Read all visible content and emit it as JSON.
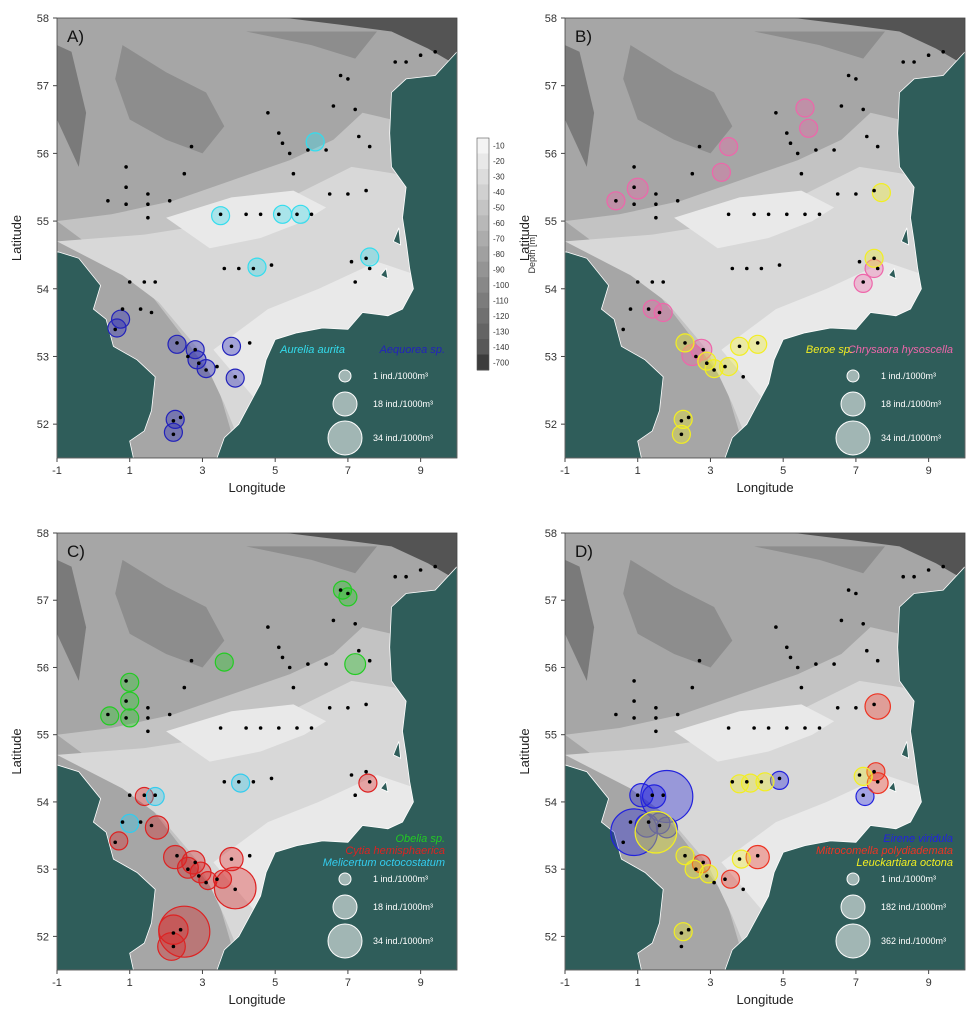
{
  "axes": {
    "xlabel": "Longitude",
    "ylabel": "Latitude",
    "xticks": [
      "-1",
      "1",
      "3",
      "5",
      "7",
      "9"
    ],
    "xtick_values": [
      -1,
      1,
      3,
      5,
      7,
      9
    ],
    "yticks": [
      "52",
      "53",
      "54",
      "55",
      "56",
      "57",
      "58"
    ],
    "ytick_values": [
      52,
      53,
      54,
      55,
      56,
      57,
      58
    ],
    "xlim": [
      -1,
      10
    ],
    "ylim": [
      51.5,
      58
    ]
  },
  "colorbar": {
    "title": "Depth [m]",
    "labels": [
      "-10",
      "-20",
      "-30",
      "-40",
      "-50",
      "-60",
      "-70",
      "-80",
      "-90",
      "-100",
      "-110",
      "-120",
      "-130",
      "-140",
      "-700"
    ],
    "colors": [
      "#f4f4f4",
      "#e8e8e8",
      "#dcdcdc",
      "#d0d0d0",
      "#c4c4c4",
      "#b8b8b8",
      "#acacac",
      "#a0a0a0",
      "#949494",
      "#888888",
      "#7c7c7c",
      "#707070",
      "#646464",
      "#585858",
      "#3c3c3c"
    ]
  },
  "colors": {
    "land": "#2f5d5a",
    "station": "#000000"
  },
  "stations": [
    [
      0.4,
      55.3
    ],
    [
      0.9,
      55.8
    ],
    [
      0.9,
      55.5
    ],
    [
      0.9,
      55.25
    ],
    [
      1.5,
      55.4
    ],
    [
      1.5,
      55.25
    ],
    [
      1.5,
      55.05
    ],
    [
      2.1,
      55.3
    ],
    [
      2.5,
      55.7
    ],
    [
      2.7,
      56.1
    ],
    [
      4.8,
      56.6
    ],
    [
      5.1,
      56.3
    ],
    [
      5.2,
      56.15
    ],
    [
      5.4,
      56.0
    ],
    [
      5.5,
      55.7
    ],
    [
      5.9,
      56.05
    ],
    [
      6.4,
      56.05
    ],
    [
      6.6,
      56.7
    ],
    [
      6.8,
      57.15
    ],
    [
      7.0,
      57.1
    ],
    [
      7.2,
      56.65
    ],
    [
      7.3,
      56.25
    ],
    [
      7.6,
      56.1
    ],
    [
      8.3,
      57.35
    ],
    [
      8.6,
      57.35
    ],
    [
      9.0,
      57.45
    ],
    [
      9.4,
      57.5
    ],
    [
      3.5,
      55.1
    ],
    [
      4.2,
      55.1
    ],
    [
      4.6,
      55.1
    ],
    [
      5.1,
      55.1
    ],
    [
      5.6,
      55.1
    ],
    [
      6.0,
      55.1
    ],
    [
      6.5,
      55.4
    ],
    [
      7.0,
      55.4
    ],
    [
      7.5,
      55.45
    ],
    [
      7.1,
      54.4
    ],
    [
      7.5,
      54.45
    ],
    [
      7.2,
      54.1
    ],
    [
      7.6,
      54.3
    ],
    [
      3.6,
      54.3
    ],
    [
      4.0,
      54.3
    ],
    [
      4.4,
      54.3
    ],
    [
      4.9,
      54.35
    ],
    [
      1.0,
      54.1
    ],
    [
      1.4,
      54.1
    ],
    [
      1.7,
      54.1
    ],
    [
      0.8,
      53.7
    ],
    [
      1.3,
      53.7
    ],
    [
      1.6,
      53.65
    ],
    [
      0.6,
      53.4
    ],
    [
      2.3,
      53.2
    ],
    [
      2.6,
      53.0
    ],
    [
      2.8,
      53.1
    ],
    [
      2.9,
      52.9
    ],
    [
      3.1,
      52.8
    ],
    [
      3.4,
      52.85
    ],
    [
      3.8,
      53.15
    ],
    [
      4.3,
      53.2
    ],
    [
      3.9,
      52.7
    ],
    [
      2.2,
      52.05
    ],
    [
      2.2,
      51.85
    ],
    [
      2.4,
      52.1
    ]
  ],
  "panels": [
    {
      "label": "A)",
      "legend": {
        "species": [
          {
            "name": "Aurelia aurita",
            "color": "#33ddee"
          },
          {
            "name": "Aequorea sp.",
            "color": "#2222bb"
          }
        ],
        "sizes": [
          "1 ind./1000m³",
          "18 ind./1000m³",
          "34 ind./1000m³"
        ]
      },
      "points": [
        {
          "lon": 0.75,
          "lat": 53.55,
          "sp": 1,
          "v": 3
        },
        {
          "lon": 0.65,
          "lat": 53.42,
          "sp": 1,
          "v": 3
        },
        {
          "lon": 2.3,
          "lat": 53.18,
          "sp": 1,
          "v": 3
        },
        {
          "lon": 2.8,
          "lat": 53.1,
          "sp": 1,
          "v": 3
        },
        {
          "lon": 2.85,
          "lat": 52.95,
          "sp": 1,
          "v": 3
        },
        {
          "lon": 3.1,
          "lat": 52.82,
          "sp": 1,
          "v": 3
        },
        {
          "lon": 3.8,
          "lat": 53.15,
          "sp": 1,
          "v": 3
        },
        {
          "lon": 3.9,
          "lat": 52.68,
          "sp": 1,
          "v": 3
        },
        {
          "lon": 2.25,
          "lat": 52.07,
          "sp": 1,
          "v": 3
        },
        {
          "lon": 2.2,
          "lat": 51.88,
          "sp": 1,
          "v": 3
        },
        {
          "lon": 3.5,
          "lat": 55.08,
          "sp": 0,
          "v": 3
        },
        {
          "lon": 4.5,
          "lat": 54.32,
          "sp": 0,
          "v": 3
        },
        {
          "lon": 5.2,
          "lat": 55.1,
          "sp": 0,
          "v": 3
        },
        {
          "lon": 5.7,
          "lat": 55.1,
          "sp": 0,
          "v": 3
        },
        {
          "lon": 6.1,
          "lat": 56.17,
          "sp": 0,
          "v": 3
        },
        {
          "lon": 7.6,
          "lat": 54.47,
          "sp": 0,
          "v": 3
        }
      ]
    },
    {
      "label": "B)",
      "legend": {
        "species": [
          {
            "name": "Beroe sp.",
            "color": "#f2ee22"
          },
          {
            "name": "Chrysaora hysoscella",
            "color": "#ee66aa"
          }
        ],
        "sizes": [
          "1 ind./1000m³",
          "18 ind./1000m³",
          "34 ind./1000m³"
        ]
      },
      "points": [
        {
          "lon": 0.4,
          "lat": 55.3,
          "sp": 1,
          "v": 3
        },
        {
          "lon": 1.0,
          "lat": 55.48,
          "sp": 1,
          "v": 4
        },
        {
          "lon": 3.5,
          "lat": 56.1,
          "sp": 1,
          "v": 3
        },
        {
          "lon": 3.3,
          "lat": 55.72,
          "sp": 1,
          "v": 3
        },
        {
          "lon": 5.6,
          "lat": 56.67,
          "sp": 1,
          "v": 3
        },
        {
          "lon": 5.7,
          "lat": 56.37,
          "sp": 1,
          "v": 3
        },
        {
          "lon": 7.5,
          "lat": 54.3,
          "sp": 1,
          "v": 3
        },
        {
          "lon": 7.2,
          "lat": 54.08,
          "sp": 1,
          "v": 3
        },
        {
          "lon": 1.4,
          "lat": 53.7,
          "sp": 1,
          "v": 3
        },
        {
          "lon": 1.7,
          "lat": 53.65,
          "sp": 1,
          "v": 3
        },
        {
          "lon": 2.5,
          "lat": 53.02,
          "sp": 1,
          "v": 4
        },
        {
          "lon": 2.75,
          "lat": 53.1,
          "sp": 1,
          "v": 4
        },
        {
          "lon": 7.7,
          "lat": 55.42,
          "sp": 0,
          "v": 3
        },
        {
          "lon": 7.5,
          "lat": 54.45,
          "sp": 0,
          "v": 3
        },
        {
          "lon": 2.3,
          "lat": 53.2,
          "sp": 0,
          "v": 3
        },
        {
          "lon": 2.9,
          "lat": 52.93,
          "sp": 0,
          "v": 3
        },
        {
          "lon": 3.1,
          "lat": 52.82,
          "sp": 0,
          "v": 3
        },
        {
          "lon": 3.5,
          "lat": 52.85,
          "sp": 0,
          "v": 3
        },
        {
          "lon": 3.8,
          "lat": 53.15,
          "sp": 0,
          "v": 3
        },
        {
          "lon": 4.3,
          "lat": 53.18,
          "sp": 0,
          "v": 3
        },
        {
          "lon": 2.25,
          "lat": 52.07,
          "sp": 0,
          "v": 3
        },
        {
          "lon": 2.2,
          "lat": 51.85,
          "sp": 0,
          "v": 3
        }
      ]
    },
    {
      "label": "C)",
      "legend": {
        "species": [
          {
            "name": "Obelia sp.",
            "color": "#22cc22"
          },
          {
            "name": "Cytia hemisphaerica",
            "color": "#dd2222"
          },
          {
            "name": "Melicertum octocostatum",
            "color": "#33ccee"
          }
        ],
        "sizes": [
          "1 ind./1000m³",
          "18 ind./1000m³",
          "34 ind./1000m³"
        ]
      },
      "points": [
        {
          "lon": 0.45,
          "lat": 55.28,
          "sp": 0,
          "v": 3
        },
        {
          "lon": 1.0,
          "lat": 55.78,
          "sp": 0,
          "v": 3
        },
        {
          "lon": 1.0,
          "lat": 55.5,
          "sp": 0,
          "v": 3
        },
        {
          "lon": 1.0,
          "lat": 55.25,
          "sp": 0,
          "v": 3
        },
        {
          "lon": 3.6,
          "lat": 56.08,
          "sp": 0,
          "v": 3
        },
        {
          "lon": 6.85,
          "lat": 57.15,
          "sp": 0,
          "v": 3
        },
        {
          "lon": 7.0,
          "lat": 57.05,
          "sp": 0,
          "v": 3
        },
        {
          "lon": 7.2,
          "lat": 56.05,
          "sp": 0,
          "v": 4
        },
        {
          "lon": 1.4,
          "lat": 54.08,
          "sp": 1,
          "v": 3
        },
        {
          "lon": 7.55,
          "lat": 54.28,
          "sp": 1,
          "v": 3
        },
        {
          "lon": 1.75,
          "lat": 53.62,
          "sp": 1,
          "v": 5
        },
        {
          "lon": 0.7,
          "lat": 53.42,
          "sp": 1,
          "v": 3
        },
        {
          "lon": 2.25,
          "lat": 53.18,
          "sp": 1,
          "v": 5
        },
        {
          "lon": 2.6,
          "lat": 53.02,
          "sp": 1,
          "v": 4
        },
        {
          "lon": 2.75,
          "lat": 53.1,
          "sp": 1,
          "v": 5
        },
        {
          "lon": 2.95,
          "lat": 52.95,
          "sp": 1,
          "v": 4
        },
        {
          "lon": 3.15,
          "lat": 52.83,
          "sp": 1,
          "v": 3
        },
        {
          "lon": 3.55,
          "lat": 52.85,
          "sp": 1,
          "v": 3
        },
        {
          "lon": 3.8,
          "lat": 53.15,
          "sp": 1,
          "v": 5
        },
        {
          "lon": 3.9,
          "lat": 52.72,
          "sp": 1,
          "v": 16
        },
        {
          "lon": 2.5,
          "lat": 52.07,
          "sp": 1,
          "v": 24
        },
        {
          "lon": 2.2,
          "lat": 52.1,
          "sp": 1,
          "v": 8
        },
        {
          "lon": 2.15,
          "lat": 51.85,
          "sp": 1,
          "v": 7
        },
        {
          "lon": 1.7,
          "lat": 54.08,
          "sp": 2,
          "v": 3
        },
        {
          "lon": 1.0,
          "lat": 53.68,
          "sp": 2,
          "v": 3
        },
        {
          "lon": 4.05,
          "lat": 54.28,
          "sp": 2,
          "v": 3
        }
      ]
    },
    {
      "label": "D)",
      "legend": {
        "species": [
          {
            "name": "Eirene viridula",
            "color": "#2222dd"
          },
          {
            "name": "Mitrocomella polydiademata",
            "color": "#ee3322"
          },
          {
            "name": "Leuckartiara octona",
            "color": "#f2ee22"
          }
        ],
        "sizes": [
          "1 ind./1000m³",
          "182 ind./1000m³",
          "362 ind./1000m³"
        ]
      },
      "points": [
        {
          "lon": 1.8,
          "lat": 54.08,
          "sp": 0,
          "v": 25
        },
        {
          "lon": 0.9,
          "lat": 53.55,
          "sp": 0,
          "v": 20
        },
        {
          "lon": 4.9,
          "lat": 54.32,
          "sp": 0,
          "v": 3
        },
        {
          "lon": 7.25,
          "lat": 54.08,
          "sp": 0,
          "v": 3
        },
        {
          "lon": 1.1,
          "lat": 54.1,
          "sp": 0,
          "v": 5
        },
        {
          "lon": 1.45,
          "lat": 54.08,
          "sp": 0,
          "v": 5
        },
        {
          "lon": 1.6,
          "lat": 53.68,
          "sp": 0,
          "v": 4
        },
        {
          "lon": 1.25,
          "lat": 53.65,
          "sp": 0,
          "v": 5
        },
        {
          "lon": 1.8,
          "lat": 53.62,
          "sp": 0,
          "v": 4
        },
        {
          "lon": 7.6,
          "lat": 55.42,
          "sp": 1,
          "v": 6
        },
        {
          "lon": 4.3,
          "lat": 53.18,
          "sp": 1,
          "v": 5
        },
        {
          "lon": 7.55,
          "lat": 54.45,
          "sp": 1,
          "v": 3
        },
        {
          "lon": 7.6,
          "lat": 54.28,
          "sp": 1,
          "v": 4
        },
        {
          "lon": 2.75,
          "lat": 53.08,
          "sp": 1,
          "v": 3
        },
        {
          "lon": 3.55,
          "lat": 52.85,
          "sp": 1,
          "v": 3
        },
        {
          "lon": 1.5,
          "lat": 53.55,
          "sp": 2,
          "v": 16
        },
        {
          "lon": 3.8,
          "lat": 54.27,
          "sp": 2,
          "v": 3
        },
        {
          "lon": 4.1,
          "lat": 54.28,
          "sp": 2,
          "v": 3
        },
        {
          "lon": 4.5,
          "lat": 54.3,
          "sp": 2,
          "v": 3
        },
        {
          "lon": 7.2,
          "lat": 54.38,
          "sp": 2,
          "v": 3
        },
        {
          "lon": 2.3,
          "lat": 53.2,
          "sp": 2,
          "v": 3
        },
        {
          "lon": 2.55,
          "lat": 53.0,
          "sp": 2,
          "v": 3
        },
        {
          "lon": 2.95,
          "lat": 52.93,
          "sp": 2,
          "v": 3
        },
        {
          "lon": 3.85,
          "lat": 53.15,
          "sp": 2,
          "v": 3
        },
        {
          "lon": 2.25,
          "lat": 52.07,
          "sp": 2,
          "v": 3
        }
      ]
    }
  ]
}
